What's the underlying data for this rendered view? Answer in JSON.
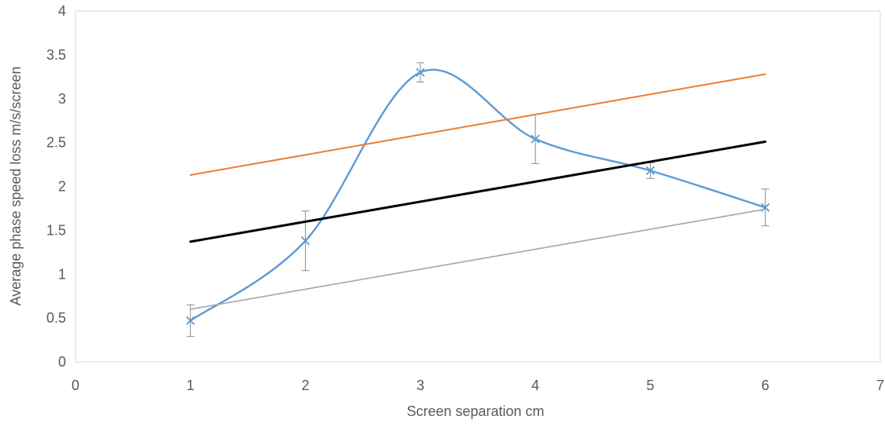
{
  "chart_data": {
    "type": "scatter",
    "xlabel": "Screen separation cm",
    "ylabel": "Average phase speed loss m/s/screen",
    "xlim": [
      0,
      7
    ],
    "ylim": [
      0,
      4
    ],
    "x_ticks": [
      "0",
      "1",
      "2",
      "3",
      "4",
      "5",
      "6",
      "7"
    ],
    "y_ticks": [
      "0",
      "0.5",
      "1",
      "1.5",
      "2",
      "2.5",
      "3",
      "3.5",
      "4"
    ],
    "grid": false,
    "legend": "none",
    "series": [
      {
        "kind": "smooth-line-markers",
        "color": "#5b9bd5",
        "marker": "x",
        "x": [
          1,
          2,
          3,
          4,
          5,
          6
        ],
        "y": [
          0.47,
          1.38,
          3.3,
          2.54,
          2.18,
          1.76
        ],
        "error": [
          0.18,
          0.34,
          0.11,
          0.28,
          0.09,
          0.21
        ]
      },
      {
        "kind": "line",
        "color": "#ed7d31",
        "x": [
          1,
          6
        ],
        "y": [
          2.13,
          3.28
        ]
      },
      {
        "kind": "line",
        "color": "#000000",
        "x": [
          1,
          6
        ],
        "y": [
          1.37,
          2.51
        ]
      },
      {
        "kind": "line",
        "color": "#a5a5a5",
        "x": [
          1,
          6
        ],
        "y": [
          0.6,
          1.74
        ]
      }
    ]
  }
}
